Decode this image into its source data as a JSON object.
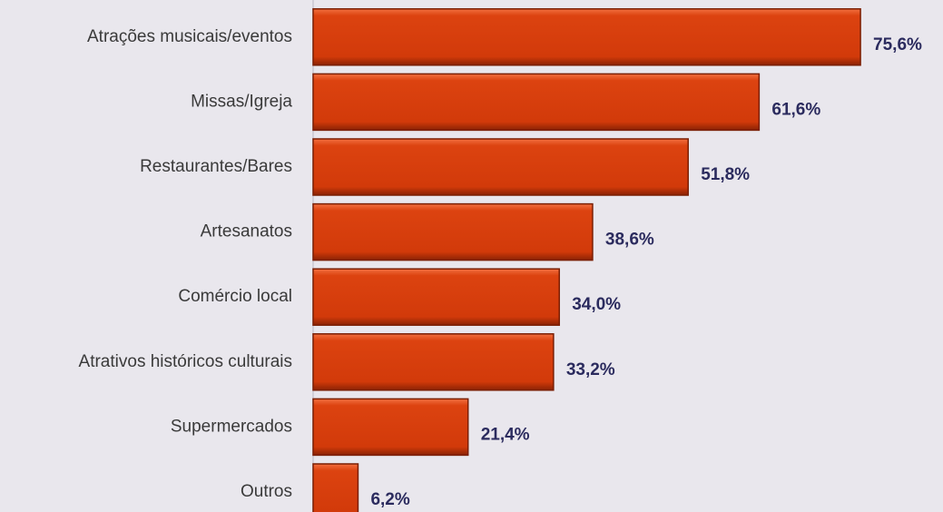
{
  "chart_data": {
    "type": "hbar",
    "categories": [
      "Atrações musicais/eventos",
      "Missas/Igreja",
      "Restaurantes/Bares",
      "Artesanatos",
      "Comércio local",
      "Atrativos históricos culturais",
      "Supermercados",
      "Outros"
    ],
    "values": [
      75.6,
      61.6,
      51.8,
      38.6,
      34.0,
      33.2,
      21.4,
      6.2
    ],
    "value_labels": [
      "75,6%",
      "61,6%",
      "51,8%",
      "38,6%",
      "34,0%",
      "33,2%",
      "21,4%",
      "6,2%"
    ],
    "color": "#d63c0c",
    "xlim": [
      0,
      87
    ]
  }
}
